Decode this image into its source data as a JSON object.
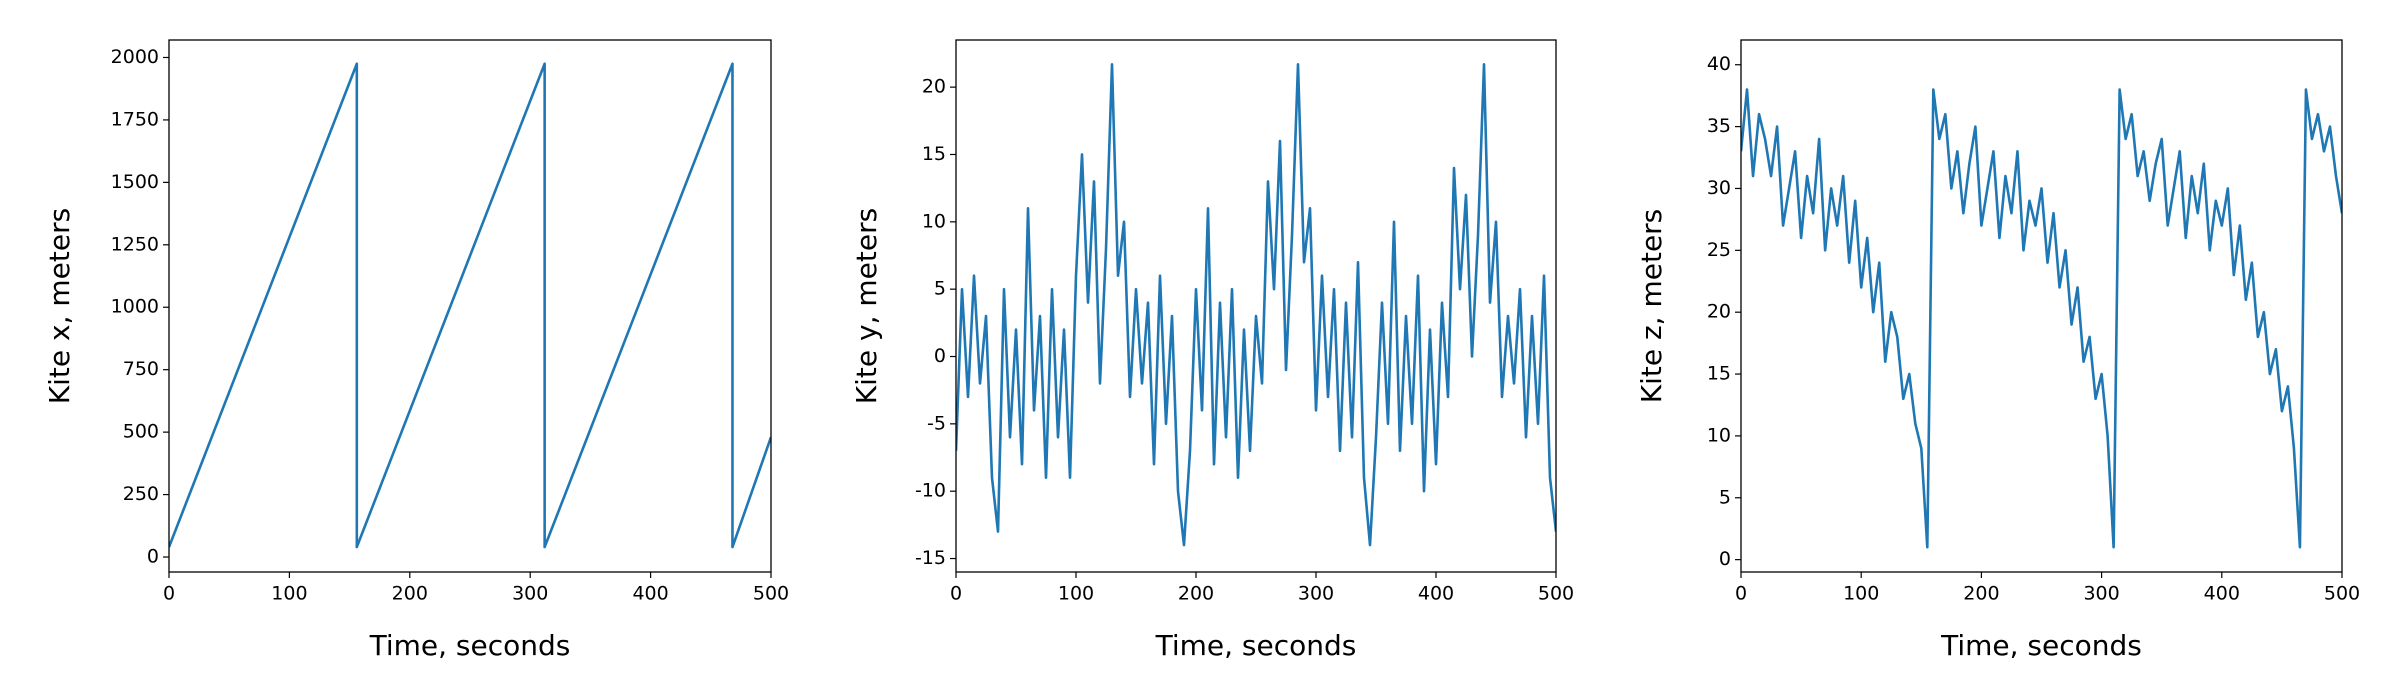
{
  "chart_data": [
    {
      "type": "line",
      "xlabel": "Time, seconds",
      "ylabel": "Kite x, meters",
      "xlim": [
        0,
        500
      ],
      "xticks": [
        0,
        100,
        200,
        300,
        400,
        500
      ],
      "ylim": [
        -60,
        2070
      ],
      "yticks": [
        0,
        250,
        500,
        750,
        1000,
        1250,
        1500,
        1750,
        2000
      ],
      "series": [
        {
          "color": "#1f77b4",
          "x": [
            0,
            156,
            156,
            312,
            312,
            468,
            468,
            500
          ],
          "values": [
            40,
            1975,
            40,
            1975,
            40,
            1975,
            40,
            480
          ]
        }
      ]
    },
    {
      "type": "line",
      "xlabel": "Time, seconds",
      "ylabel": "Kite y, meters",
      "xlim": [
        0,
        500
      ],
      "xticks": [
        0,
        100,
        200,
        300,
        400,
        500
      ],
      "ylim": [
        -16,
        23.5
      ],
      "yticks": [
        -15,
        -10,
        -5,
        0,
        5,
        10,
        15,
        20
      ],
      "series": [
        {
          "color": "#1f77b4",
          "x": [
            0,
            5,
            10,
            15,
            20,
            25,
            30,
            35,
            40,
            45,
            50,
            55,
            60,
            65,
            70,
            75,
            80,
            85,
            90,
            95,
            100,
            105,
            110,
            115,
            120,
            125,
            130,
            135,
            140,
            145,
            150,
            155,
            160,
            165,
            170,
            175,
            180,
            185,
            190,
            195,
            200,
            205,
            210,
            215,
            220,
            225,
            230,
            235,
            240,
            245,
            250,
            255,
            260,
            265,
            270,
            275,
            280,
            285,
            290,
            295,
            300,
            305,
            310,
            315,
            320,
            325,
            330,
            335,
            340,
            345,
            350,
            355,
            360,
            365,
            370,
            375,
            380,
            385,
            390,
            395,
            400,
            405,
            410,
            415,
            420,
            425,
            430,
            435,
            440,
            445,
            450,
            455,
            460,
            465,
            470,
            475,
            480,
            485,
            490,
            495,
            500
          ],
          "values": [
            -7,
            5,
            -3,
            6,
            -2,
            3,
            -9,
            -13,
            5,
            -6,
            2,
            -8,
            11,
            -4,
            3,
            -9,
            5,
            -6,
            2,
            -9,
            6,
            15,
            4,
            13,
            -2,
            8,
            21.7,
            6,
            10,
            -3,
            5,
            -2,
            4,
            -8,
            6,
            -5,
            3,
            -10,
            -14,
            -7,
            5,
            -4,
            11,
            -8,
            4,
            -6,
            5,
            -9,
            2,
            -7,
            3,
            -2,
            13,
            5,
            16,
            -1,
            9,
            21.7,
            7,
            11,
            -4,
            6,
            -3,
            5,
            -7,
            4,
            -6,
            7,
            -9,
            -14,
            -6,
            4,
            -5,
            10,
            -7,
            3,
            -5,
            6,
            -10,
            2,
            -8,
            4,
            -3,
            14,
            5,
            12,
            0,
            9,
            21.7,
            4,
            10,
            -3,
            3,
            -2,
            5,
            -6,
            3,
            -5,
            6,
            -9,
            -13
          ]
        }
      ]
    },
    {
      "type": "line",
      "xlabel": "Time, seconds",
      "ylabel": "Kite z, meters",
      "xlim": [
        0,
        500
      ],
      "xticks": [
        0,
        100,
        200,
        300,
        400,
        500
      ],
      "ylim": [
        -1,
        42
      ],
      "yticks": [
        0,
        5,
        10,
        15,
        20,
        25,
        30,
        35,
        40
      ],
      "series": [
        {
          "color": "#1f77b4",
          "x": [
            0,
            5,
            10,
            15,
            20,
            25,
            30,
            35,
            40,
            45,
            50,
            55,
            60,
            65,
            70,
            75,
            80,
            85,
            90,
            95,
            100,
            105,
            110,
            115,
            120,
            125,
            130,
            135,
            140,
            145,
            150,
            155,
            160,
            165,
            170,
            175,
            180,
            185,
            190,
            195,
            200,
            205,
            210,
            215,
            220,
            225,
            230,
            235,
            240,
            245,
            250,
            255,
            260,
            265,
            270,
            275,
            280,
            285,
            290,
            295,
            300,
            305,
            310,
            315,
            320,
            325,
            330,
            335,
            340,
            345,
            350,
            355,
            360,
            365,
            370,
            375,
            380,
            385,
            390,
            395,
            400,
            405,
            410,
            415,
            420,
            425,
            430,
            435,
            440,
            445,
            450,
            455,
            460,
            465,
            470,
            475,
            480,
            485,
            490,
            495,
            500
          ],
          "values": [
            33,
            38,
            31,
            36,
            34,
            31,
            35,
            27,
            30,
            33,
            26,
            31,
            28,
            34,
            25,
            30,
            27,
            31,
            24,
            29,
            22,
            26,
            20,
            24,
            16,
            20,
            18,
            13,
            15,
            11,
            9,
            1,
            38,
            34,
            36,
            30,
            33,
            28,
            32,
            35,
            27,
            30,
            33,
            26,
            31,
            28,
            33,
            25,
            29,
            27,
            30,
            24,
            28,
            22,
            25,
            19,
            22,
            16,
            18,
            13,
            15,
            10,
            1,
            38,
            34,
            36,
            31,
            33,
            29,
            32,
            34,
            27,
            30,
            33,
            26,
            31,
            28,
            32,
            25,
            29,
            27,
            30,
            23,
            27,
            21,
            24,
            18,
            20,
            15,
            17,
            12,
            14,
            9,
            1,
            38,
            34,
            36,
            33,
            35,
            31,
            28
          ]
        }
      ]
    }
  ]
}
